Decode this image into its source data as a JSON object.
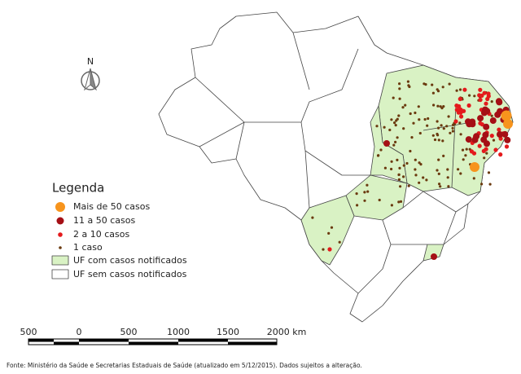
{
  "north": "N",
  "legend": {
    "title": "Legenda",
    "items": [
      "Mais de 50 casos",
      "11 a 50 casos",
      "2 a 10 casos",
      "1 caso",
      "UF com casos notificados",
      "UF sem casos notificados"
    ]
  },
  "scale_bar": {
    "labels": [
      "500",
      "0",
      "500",
      "1000",
      "1500",
      "2000 km"
    ]
  },
  "source": "Fonte: Ministério da Saúde e Secretarias Estaduais de Saúde (atualizado em 5/12/2015).  Dados sujeitos a alteração."
}
